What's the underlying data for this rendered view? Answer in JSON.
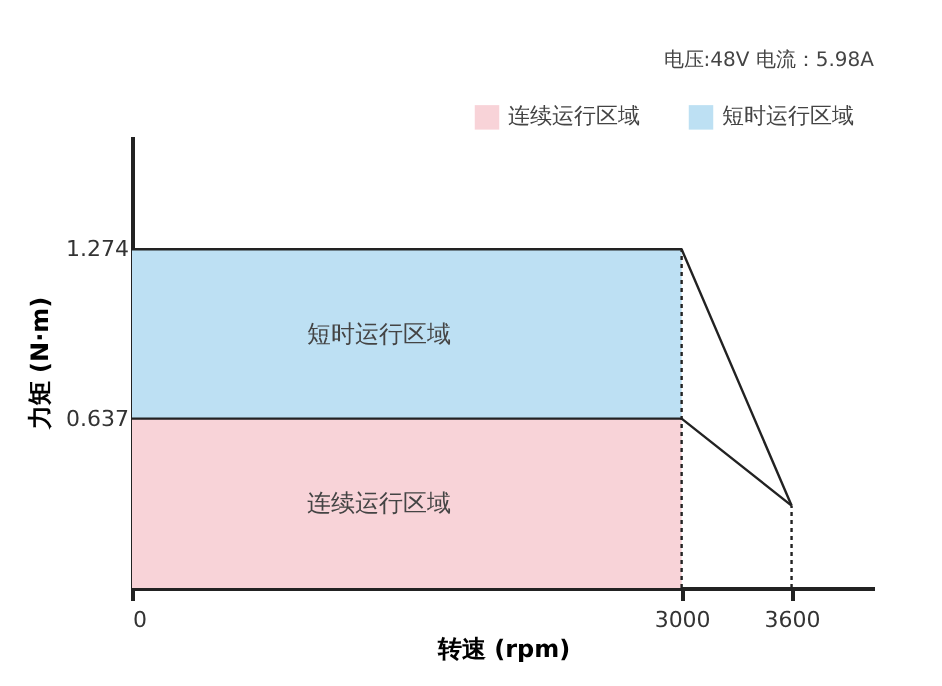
{
  "chart_data": {
    "type": "area",
    "stacked": true,
    "xlabel": "转速 (rpm)",
    "ylabel": "力矩 (N·m)",
    "annotations": [
      "电压:48V   电流：5.98A",
      "连续运行区域",
      "短时运行区域"
    ],
    "ref_lines": [
      {
        "axis": "x",
        "value": 3000,
        "line_style": "dotted",
        "color": "#222222"
      },
      {
        "axis": "x",
        "value": 3600,
        "line_style": "dotted",
        "color": "#222222"
      }
    ],
    "xlim": [
      0,
      4050
    ],
    "ylim": [
      0,
      1.7
    ],
    "xticks": [
      0,
      3000,
      3600
    ],
    "yticks": [
      0.637,
      1.274
    ],
    "grid": false,
    "legend": "top right",
    "series": [
      {
        "name": "连续运行区域",
        "color": "#f8d3d8",
        "x": [
          0,
          3000
        ],
        "values": [
          0.637,
          0.637
        ]
      },
      {
        "name": "短时运行区域",
        "color": "#bde0f3",
        "x": [
          0,
          3000
        ],
        "values": [
          0.637,
          0.637
        ]
      },
      {
        "type": "line",
        "color": "#222222",
        "line_style": "solid",
        "x": [
          0,
          3000,
          3600
        ],
        "values": [
          1.274,
          1.274,
          0.31
        ]
      },
      {
        "type": "line",
        "color": "#222222",
        "line_style": "solid",
        "x": [
          0,
          3000,
          3600
        ],
        "values": [
          0.637,
          0.637,
          0.31
        ]
      }
    ]
  }
}
